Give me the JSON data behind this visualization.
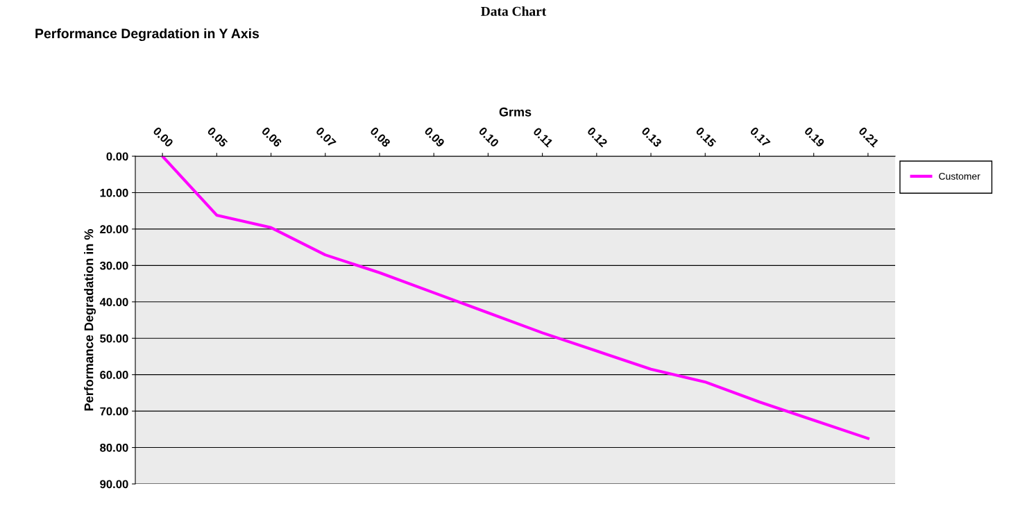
{
  "chart_data": {
    "type": "line",
    "title": "Data Chart",
    "subtitle": "Performance Degradation in Y Axis",
    "xlabel": "Grms",
    "ylabel": "Performance Degradation in %",
    "categories": [
      "0.00",
      "0.05",
      "0.06",
      "0.07",
      "0.08",
      "0.09",
      "0.10",
      "0.11",
      "0.12",
      "0.13",
      "0.15",
      "0.17",
      "0.19",
      "0.21"
    ],
    "series": [
      {
        "name": "Customer",
        "color": "#ff00ff",
        "values": [
          0,
          16.2,
          19.6,
          27.1,
          32,
          37.5,
          43,
          48.5,
          53.5,
          58.5,
          62,
          67.5,
          72.5,
          77.5
        ]
      }
    ],
    "ylim": [
      90,
      0
    ],
    "yticks": [
      {
        "value": 0,
        "label": "0.00"
      },
      {
        "value": 10,
        "label": "10.00"
      },
      {
        "value": 20,
        "label": "20.00"
      },
      {
        "value": 30,
        "label": "30.00"
      },
      {
        "value": 40,
        "label": "40.00"
      },
      {
        "value": 50,
        "label": "50.00"
      },
      {
        "value": 60,
        "label": "60.00"
      },
      {
        "value": 70,
        "label": "70.00"
      },
      {
        "value": 80,
        "label": "80.00"
      },
      {
        "value": 90,
        "label": "90.00"
      }
    ],
    "grid": "y",
    "legend": "top right",
    "marker": "none",
    "line_style": "solid"
  }
}
